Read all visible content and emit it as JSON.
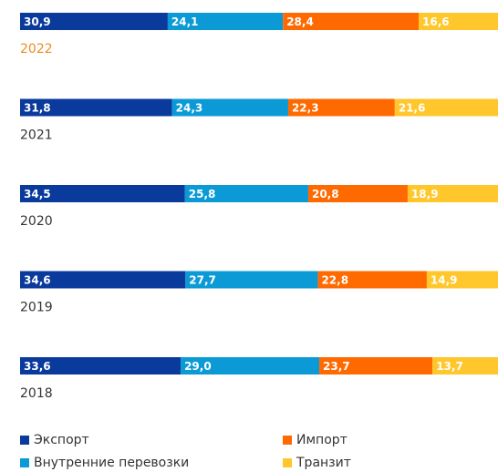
{
  "chart_data": {
    "type": "stacked_bar_horizontal_100",
    "categories": [
      "2022",
      "2021",
      "2020",
      "2019",
      "2018"
    ],
    "category_colors": [
      "#f08a24",
      "#333333",
      "#333333",
      "#333333",
      "#333333"
    ],
    "series": [
      {
        "name": "Экспорт",
        "color": "#0a3a9c",
        "values": [
          30.9,
          31.8,
          34.5,
          34.6,
          33.6
        ],
        "value_labels": [
          "30,9",
          "31,8",
          "34,5",
          "34,6",
          "33,6"
        ]
      },
      {
        "name": "Внутренние перевозки",
        "color": "#0b9ad6",
        "values": [
          24.1,
          24.3,
          25.8,
          27.7,
          29.0
        ],
        "value_labels": [
          "24,1",
          "24,3",
          "25,8",
          "27,7",
          "29,0"
        ]
      },
      {
        "name": "Импорт",
        "color": "#ff6a00",
        "values": [
          28.4,
          22.3,
          20.8,
          22.8,
          23.7
        ],
        "value_labels": [
          "28,4",
          "22,3",
          "20,8",
          "22,8",
          "23,7"
        ]
      },
      {
        "name": "Транзит",
        "color": "#ffc72c",
        "values": [
          16.6,
          21.6,
          18.9,
          14.9,
          13.7
        ],
        "value_labels": [
          "16,6",
          "21,6",
          "18,9",
          "14,9",
          "13,7"
        ]
      }
    ]
  }
}
